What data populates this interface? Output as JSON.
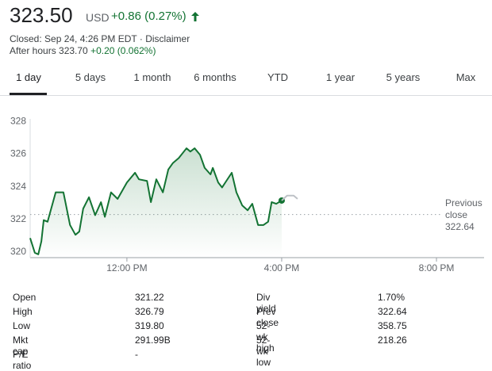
{
  "header": {
    "price": "323.50",
    "currency": "USD",
    "change": "+0.86 (0.27%)",
    "closed": "Closed: Sep 24, 4:26 PM EDT · Disclaimer",
    "after_hours": "After hours 323.70",
    "after_hours_change": "+0.20 (0.062%)"
  },
  "tabs": [
    "1 day",
    "5 days",
    "1 month",
    "6 months",
    "YTD",
    "1 year",
    "5 years",
    "Max"
  ],
  "chart_data": {
    "type": "line",
    "x": [
      9.5,
      9.62,
      9.71,
      9.79,
      9.85,
      9.95,
      10.16,
      10.36,
      10.53,
      10.67,
      10.77,
      10.87,
      11.02,
      11.18,
      11.33,
      11.43,
      11.59,
      11.76,
      12.0,
      12.21,
      12.31,
      12.52,
      12.62,
      12.76,
      12.93,
      13.07,
      13.19,
      13.34,
      13.54,
      13.64,
      13.75,
      13.89,
      14.01,
      14.16,
      14.22,
      14.36,
      14.46,
      14.57,
      14.71,
      14.83,
      14.98,
      15.12,
      15.24,
      15.39,
      15.53,
      15.65,
      15.74,
      15.86,
      16.0,
      16.14,
      16.31,
      16.41
    ],
    "series": [
      {
        "color": "#137333",
        "values": [
          321.2,
          320.3,
          320.2,
          321.0,
          322.3,
          322.2,
          324.0,
          324.0,
          322.0,
          321.4,
          321.6,
          323.0,
          323.7,
          322.6,
          323.4,
          322.5,
          324.0,
          323.6,
          324.6,
          325.2,
          324.8,
          324.7,
          323.4,
          324.8,
          324.0,
          325.4,
          325.8,
          326.1,
          326.7,
          326.5,
          326.7,
          326.3,
          325.5,
          325.1,
          325.5,
          324.6,
          324.3,
          324.7,
          325.2,
          324.0,
          323.2,
          322.9,
          323.3,
          322.0,
          322.0,
          322.2,
          323.4,
          323.3,
          323.5,
          null,
          null,
          null
        ]
      },
      {
        "color": "#bdc1c6",
        "values": [
          null,
          null,
          null,
          null,
          null,
          null,
          null,
          null,
          null,
          null,
          null,
          null,
          null,
          null,
          null,
          null,
          null,
          null,
          null,
          null,
          null,
          null,
          null,
          null,
          null,
          null,
          null,
          null,
          null,
          null,
          null,
          null,
          null,
          null,
          null,
          null,
          null,
          null,
          null,
          null,
          null,
          null,
          null,
          null,
          null,
          null,
          null,
          null,
          323.5,
          323.8,
          323.8,
          323.6
        ]
      }
    ],
    "xlim": [
      9.5,
      21.23
    ],
    "ylim": [
      320,
      328.5
    ],
    "xticks": [
      {
        "value": 12,
        "label": "12:00 PM"
      },
      {
        "value": 16,
        "label": "4:00 PM"
      },
      {
        "value": 20,
        "label": "8:00 PM"
      }
    ],
    "yticks": [
      320,
      322,
      324,
      326,
      328
    ],
    "grid": false,
    "reference_line": {
      "value": 322.64,
      "label": "Previous close",
      "value_label": "322.64"
    }
  },
  "stats": {
    "left": [
      {
        "label": "Open",
        "value": "321.22"
      },
      {
        "label": "High",
        "value": "326.79"
      },
      {
        "label": "Low",
        "value": "319.80"
      },
      {
        "label": "Mkt cap",
        "value": "291.99B"
      },
      {
        "label": "P/E ratio",
        "value": "-"
      }
    ],
    "right": [
      {
        "label": "Div yield",
        "value": "1.70%"
      },
      {
        "label": "Prev close",
        "value": "322.64"
      },
      {
        "label": "52-wk high",
        "value": "358.75"
      },
      {
        "label": "52-wk low",
        "value": "218.26"
      }
    ]
  }
}
